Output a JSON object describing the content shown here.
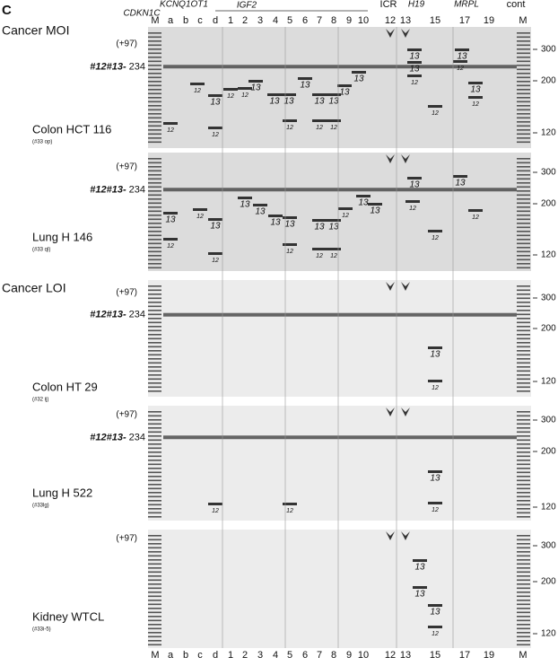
{
  "panel_letter": "C",
  "header": {
    "genes": [
      "CDKN1C",
      "KCNQ1OT1",
      "IGF2",
      "ICR",
      "H19",
      "MRPL",
      "cont"
    ],
    "lanes": [
      "M",
      "a",
      "b",
      "c",
      "d",
      "1",
      "2",
      "3",
      "4",
      "5",
      "6",
      "7",
      "8",
      "9",
      "10",
      "12",
      "13",
      "15",
      "17",
      "19",
      "M"
    ]
  },
  "footer_lanes": [
    "M",
    "a",
    "b",
    "c",
    "d",
    "1",
    "2",
    "3",
    "4",
    "5",
    "6",
    "7",
    "8",
    "9",
    "10",
    "12",
    "13",
    "15",
    "17",
    "19",
    "M"
  ],
  "panels": [
    {
      "group": "Cancer MOI",
      "name": "Colon HCT 116",
      "code": "(#33 op)",
      "upper": "(+97)",
      "marker_ids": "#12#13-",
      "marker_size": "234",
      "sizes": [
        "300",
        "200",
        "120"
      ],
      "band_labels": [
        "13",
        "13",
        "12",
        "13",
        "12",
        "13",
        "13",
        "13",
        "13",
        "13",
        "13",
        "13",
        "13",
        "13",
        "13",
        "12",
        "12",
        "12",
        "12",
        "12",
        "12",
        "12",
        "12",
        "12",
        "12"
      ]
    },
    {
      "name": "Lung H 146",
      "code": "(#33 ql)",
      "upper": "(+97)",
      "marker_ids": "#12#13-",
      "marker_size": "234",
      "sizes": [
        "300",
        "200",
        "120"
      ],
      "band_labels": [
        "13",
        "13",
        "13",
        "13",
        "13",
        "13",
        "13",
        "13",
        "13",
        "13",
        "13",
        "13",
        "12",
        "12",
        "12",
        "12",
        "12",
        "12",
        "12",
        "12",
        "12",
        "12"
      ]
    },
    {
      "group": "Cancer LOI",
      "name": "Colon HT 29",
      "code": "(#32 ij)",
      "upper": "(+97)",
      "marker_ids": "#12#13-",
      "marker_size": "234",
      "sizes": [
        "300",
        "200",
        "120"
      ],
      "band_labels": [
        "13",
        "12"
      ]
    },
    {
      "name": "Lung H 522",
      "code": "(#33lg)",
      "upper": "(+97)",
      "marker_ids": "#12#13-",
      "marker_size": "234",
      "sizes": [
        "300",
        "200",
        "120"
      ],
      "band_labels": [
        "12",
        "12",
        "13",
        "12"
      ]
    },
    {
      "name": "Kidney WTCL",
      "code": "(#33i-5)",
      "upper": "(+97)",
      "sizes": [
        "300",
        "200",
        "120"
      ],
      "band_labels": [
        "13",
        "13",
        "13",
        "12"
      ]
    }
  ]
}
